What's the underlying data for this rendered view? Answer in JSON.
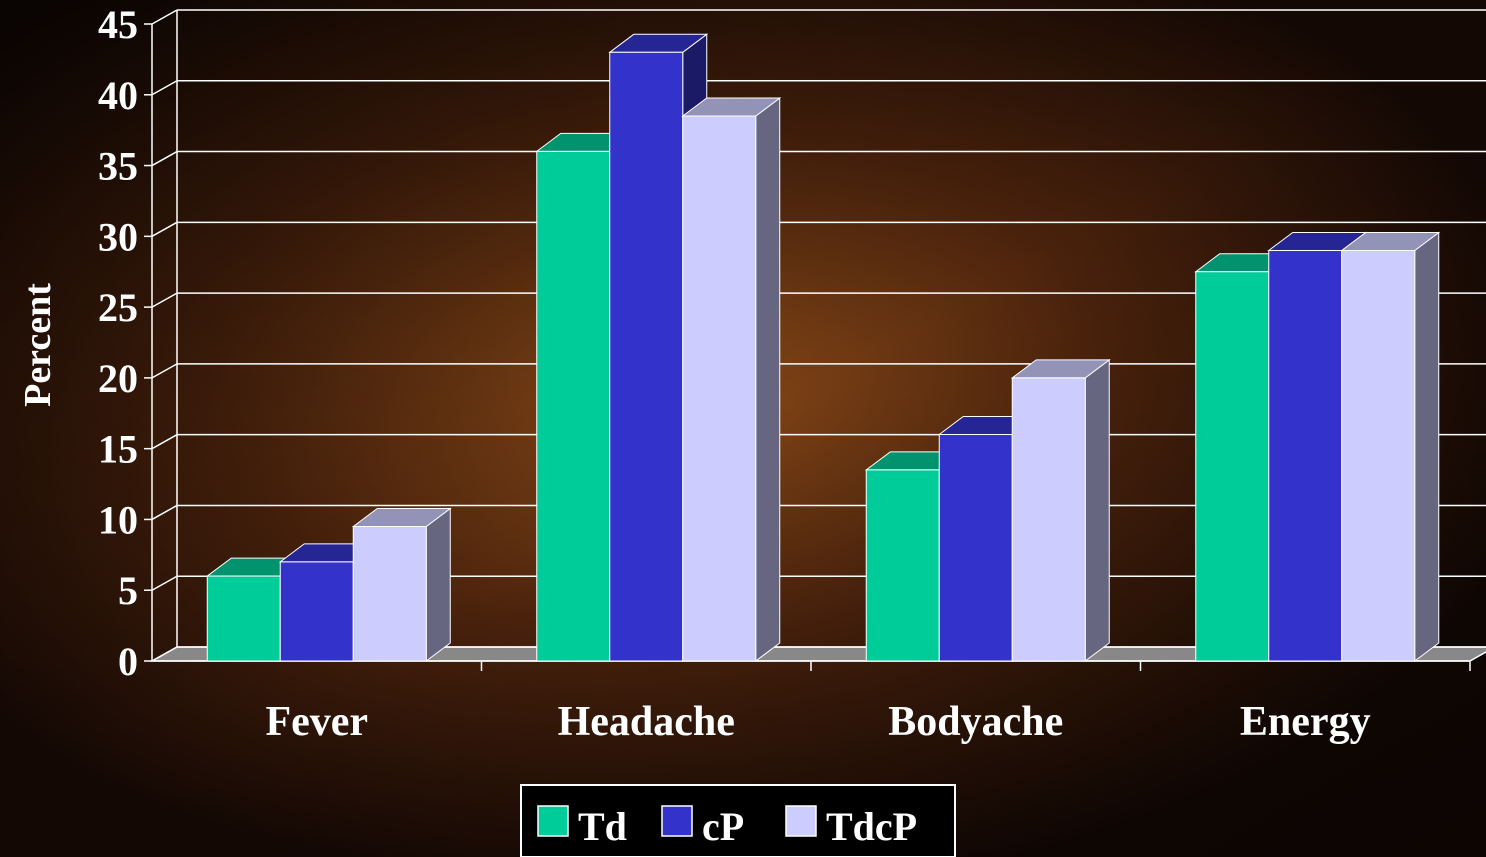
{
  "chart_data": {
    "type": "bar3d",
    "y_label": "Percent",
    "categories": [
      "Fever",
      "Headache",
      "Bodyache",
      "Energy"
    ],
    "series": [
      {
        "name": "Td",
        "color": "#00cc99",
        "values": [
          6,
          36,
          13.5,
          27.5
        ]
      },
      {
        "name": "cP",
        "color": "#3333cc",
        "values": [
          7,
          43,
          16,
          29
        ]
      },
      {
        "name": "TdcP",
        "color": "#ccccff",
        "values": [
          9.5,
          38.5,
          20,
          29
        ]
      }
    ],
    "ylim": [
      0,
      45
    ],
    "yticks": [
      0,
      5,
      10,
      15,
      20,
      25,
      30,
      35,
      40,
      45
    ],
    "grid": true
  }
}
